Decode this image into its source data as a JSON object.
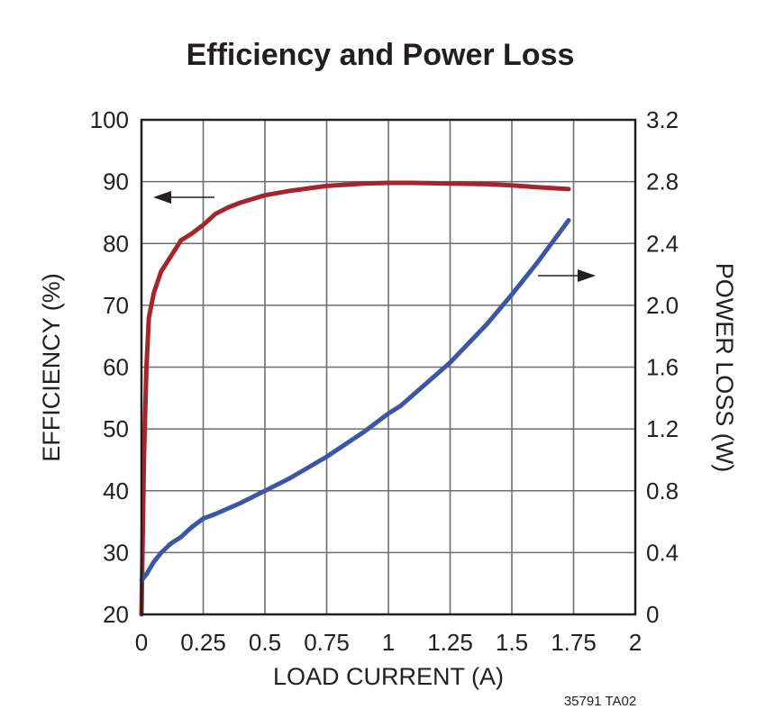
{
  "chart_data": {
    "type": "line",
    "title": "Efficiency and Power Loss",
    "xlabel": "LOAD CURRENT (A)",
    "ylabel_left": "EFFICIENCY (%)",
    "ylabel_right": "POWER LOSS (W)",
    "xlim": [
      0,
      2
    ],
    "ylim_left": [
      20,
      100
    ],
    "ylim_right": [
      0,
      3.2
    ],
    "x_ticks": [
      "0",
      "0.25",
      "0.5",
      "0.75",
      "1",
      "1.25",
      "1.5",
      "1.75",
      "2"
    ],
    "y_left_ticks": [
      "20",
      "30",
      "40",
      "50",
      "60",
      "70",
      "80",
      "90",
      "100"
    ],
    "y_right_ticks": [
      "0",
      "0.4",
      "0.8",
      "1.2",
      "1.6",
      "2.0",
      "2.4",
      "2.8",
      "3.2"
    ],
    "grid": true,
    "footnote": "35791 TA02",
    "colors": {
      "efficiency": "#a4262c",
      "power_loss": "#3c56a4",
      "grid": "#6d6e71",
      "frame": "#231f20"
    },
    "series": [
      {
        "axis": "left",
        "x": [
          0,
          0.01,
          0.02,
          0.03,
          0.05,
          0.08,
          0.12,
          0.16,
          0.2,
          0.25,
          0.3,
          0.35,
          0.4,
          0.5,
          0.6,
          0.75,
          0.9,
          1.0,
          1.1,
          1.25,
          1.4,
          1.5,
          1.6,
          1.73
        ],
        "y": [
          20,
          45,
          60,
          68,
          72,
          75.5,
          78,
          80.5,
          81.5,
          83,
          84.8,
          85.8,
          86.6,
          87.8,
          88.5,
          89.3,
          89.7,
          89.8,
          89.8,
          89.7,
          89.6,
          89.4,
          89.1,
          88.8
        ]
      },
      {
        "axis": "right",
        "x": [
          0,
          0.02,
          0.05,
          0.08,
          0.12,
          0.16,
          0.2,
          0.25,
          0.3,
          0.4,
          0.5,
          0.6,
          0.75,
          0.9,
          1.0,
          1.05,
          1.1,
          1.25,
          1.4,
          1.5,
          1.6,
          1.73
        ],
        "y": [
          0.22,
          0.26,
          0.34,
          0.4,
          0.46,
          0.5,
          0.56,
          0.62,
          0.65,
          0.72,
          0.8,
          0.88,
          1.02,
          1.18,
          1.3,
          1.35,
          1.42,
          1.63,
          1.88,
          2.07,
          2.27,
          2.55
        ]
      }
    ]
  }
}
